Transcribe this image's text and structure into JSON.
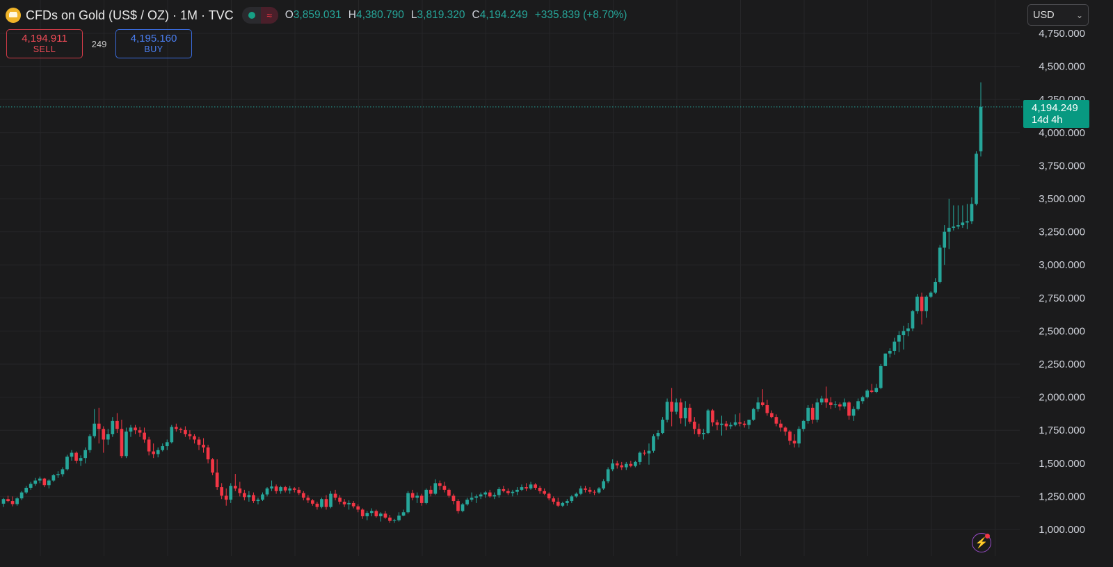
{
  "header": {
    "title": "CFDs on Gold (US$ / OZ) · 1M · TVC",
    "open_key": "O",
    "open": "3,859.031",
    "high_key": "H",
    "high": "4,380.790",
    "low_key": "L",
    "low": "3,819.320",
    "close_key": "C",
    "close": "4,194.249",
    "change": "+335.839 (+8.70%)"
  },
  "trade": {
    "sell_price": "4,194.911",
    "sell_label": "SELL",
    "spread": "249",
    "buy_price": "4,195.160",
    "buy_label": "BUY"
  },
  "currency": "USD",
  "last_price": {
    "price": "4,194.249",
    "countdown": "14d 4h"
  },
  "icons": [
    "gold-logo-icon",
    "status-dot-icon",
    "wave-icon",
    "chevron-down-icon",
    "lightning-icon"
  ],
  "colors": {
    "up": "#26a69a",
    "down": "#f23645",
    "background": "#1b1b1c",
    "grid": "#262628",
    "price_tag": "#089981"
  },
  "chart_data": {
    "type": "candlestick",
    "symbol": "CFDs on Gold (US$ / OZ)",
    "interval": "1M",
    "y_ticks": [
      1000,
      1250,
      1500,
      1750,
      2000,
      2250,
      2500,
      2750,
      3000,
      3250,
      3500,
      3750,
      4000,
      4250,
      4500,
      4750
    ],
    "y_tick_labels": [
      "1,000.000",
      "1,250.000",
      "1,500.000",
      "1,750.000",
      "2,000.000",
      "2,250.000",
      "2,500.000",
      "2,750.000",
      "3,000.000",
      "3,250.000",
      "3,500.000",
      "3,750.000",
      "4,000.000",
      "4,250.000",
      "4,500.000",
      "4,750.000"
    ],
    "ylim": [
      925,
      4800
    ],
    "grid": true,
    "last_price_line": 4194.249,
    "candles": [
      [
        1195,
        1238,
        1170,
        1230
      ],
      [
        1230,
        1255,
        1205,
        1215
      ],
      [
        1215,
        1250,
        1175,
        1192
      ],
      [
        1192,
        1245,
        1180,
        1235
      ],
      [
        1235,
        1290,
        1222,
        1280
      ],
      [
        1280,
        1330,
        1268,
        1315
      ],
      [
        1315,
        1360,
        1300,
        1345
      ],
      [
        1345,
        1390,
        1330,
        1370
      ],
      [
        1370,
        1400,
        1350,
        1385
      ],
      [
        1385,
        1390,
        1320,
        1335
      ],
      [
        1335,
        1380,
        1310,
        1370
      ],
      [
        1370,
        1420,
        1360,
        1410
      ],
      [
        1410,
        1440,
        1390,
        1418
      ],
      [
        1418,
        1470,
        1400,
        1455
      ],
      [
        1455,
        1565,
        1445,
        1550
      ],
      [
        1550,
        1600,
        1520,
        1580
      ],
      [
        1580,
        1590,
        1500,
        1520
      ],
      [
        1520,
        1560,
        1480,
        1540
      ],
      [
        1540,
        1620,
        1500,
        1600
      ],
      [
        1600,
        1720,
        1580,
        1705
      ],
      [
        1705,
        1910,
        1690,
        1800
      ],
      [
        1800,
        1920,
        1650,
        1760
      ],
      [
        1760,
        1780,
        1580,
        1680
      ],
      [
        1680,
        1760,
        1640,
        1720
      ],
      [
        1720,
        1850,
        1700,
        1820
      ],
      [
        1820,
        1880,
        1730,
        1760
      ],
      [
        1760,
        1830,
        1540,
        1555
      ],
      [
        1555,
        1770,
        1540,
        1740
      ],
      [
        1740,
        1790,
        1700,
        1770
      ],
      [
        1770,
        1790,
        1720,
        1750
      ],
      [
        1750,
        1775,
        1700,
        1732
      ],
      [
        1732,
        1770,
        1655,
        1680
      ],
      [
        1680,
        1700,
        1560,
        1590
      ],
      [
        1590,
        1650,
        1540,
        1570
      ],
      [
        1570,
        1620,
        1545,
        1600
      ],
      [
        1600,
        1650,
        1590,
        1630
      ],
      [
        1630,
        1680,
        1600,
        1660
      ],
      [
        1660,
        1790,
        1650,
        1775
      ],
      [
        1775,
        1800,
        1740,
        1760
      ],
      [
        1760,
        1770,
        1730,
        1752
      ],
      [
        1752,
        1780,
        1700,
        1720
      ],
      [
        1720,
        1750,
        1680,
        1705
      ],
      [
        1705,
        1720,
        1650,
        1680
      ],
      [
        1680,
        1700,
        1600,
        1640
      ],
      [
        1640,
        1690,
        1580,
        1620
      ],
      [
        1620,
        1640,
        1500,
        1530
      ],
      [
        1530,
        1540,
        1410,
        1430
      ],
      [
        1430,
        1530,
        1300,
        1320
      ],
      [
        1320,
        1350,
        1230,
        1255
      ],
      [
        1255,
        1310,
        1180,
        1225
      ],
      [
        1225,
        1350,
        1200,
        1330
      ],
      [
        1330,
        1420,
        1290,
        1310
      ],
      [
        1310,
        1360,
        1250,
        1275
      ],
      [
        1275,
        1300,
        1220,
        1245
      ],
      [
        1245,
        1290,
        1210,
        1260
      ],
      [
        1260,
        1280,
        1200,
        1215
      ],
      [
        1215,
        1240,
        1190,
        1225
      ],
      [
        1225,
        1280,
        1215,
        1265
      ],
      [
        1265,
        1320,
        1250,
        1310
      ],
      [
        1310,
        1370,
        1290,
        1325
      ],
      [
        1325,
        1340,
        1270,
        1290
      ],
      [
        1290,
        1330,
        1270,
        1320
      ],
      [
        1320,
        1330,
        1280,
        1295
      ],
      [
        1295,
        1330,
        1270,
        1310
      ],
      [
        1310,
        1320,
        1280,
        1300
      ],
      [
        1300,
        1320,
        1260,
        1275
      ],
      [
        1275,
        1290,
        1220,
        1240
      ],
      [
        1240,
        1260,
        1200,
        1220
      ],
      [
        1220,
        1230,
        1180,
        1195
      ],
      [
        1195,
        1210,
        1150,
        1170
      ],
      [
        1170,
        1240,
        1160,
        1230
      ],
      [
        1230,
        1260,
        1150,
        1170
      ],
      [
        1170,
        1290,
        1160,
        1270
      ],
      [
        1270,
        1300,
        1220,
        1240
      ],
      [
        1240,
        1260,
        1190,
        1210
      ],
      [
        1210,
        1230,
        1170,
        1190
      ],
      [
        1190,
        1220,
        1150,
        1200
      ],
      [
        1200,
        1215,
        1160,
        1175
      ],
      [
        1175,
        1190,
        1130,
        1150
      ],
      [
        1150,
        1160,
        1080,
        1100
      ],
      [
        1100,
        1140,
        1070,
        1125
      ],
      [
        1125,
        1160,
        1100,
        1140
      ],
      [
        1140,
        1150,
        1090,
        1100
      ],
      [
        1100,
        1130,
        1060,
        1120
      ],
      [
        1120,
        1140,
        1080,
        1090
      ],
      [
        1090,
        1110,
        1050,
        1065
      ],
      [
        1065,
        1080,
        1050,
        1070
      ],
      [
        1070,
        1130,
        1060,
        1105
      ],
      [
        1105,
        1150,
        1100,
        1130
      ],
      [
        1130,
        1290,
        1120,
        1275
      ],
      [
        1275,
        1300,
        1220,
        1240
      ],
      [
        1240,
        1280,
        1200,
        1255
      ],
      [
        1255,
        1270,
        1180,
        1200
      ],
      [
        1200,
        1310,
        1190,
        1300
      ],
      [
        1300,
        1330,
        1250,
        1270
      ],
      [
        1270,
        1380,
        1260,
        1350
      ],
      [
        1350,
        1370,
        1300,
        1330
      ],
      [
        1330,
        1360,
        1280,
        1300
      ],
      [
        1300,
        1310,
        1240,
        1255
      ],
      [
        1255,
        1270,
        1190,
        1215
      ],
      [
        1215,
        1230,
        1120,
        1140
      ],
      [
        1140,
        1200,
        1130,
        1190
      ],
      [
        1190,
        1240,
        1180,
        1225
      ],
      [
        1225,
        1280,
        1210,
        1240
      ],
      [
        1240,
        1265,
        1200,
        1250
      ],
      [
        1250,
        1280,
        1230,
        1265
      ],
      [
        1265,
        1290,
        1240,
        1280
      ],
      [
        1280,
        1300,
        1240,
        1250
      ],
      [
        1250,
        1280,
        1230,
        1260
      ],
      [
        1260,
        1320,
        1240,
        1305
      ],
      [
        1305,
        1330,
        1280,
        1290
      ],
      [
        1290,
        1310,
        1260,
        1275
      ],
      [
        1275,
        1300,
        1250,
        1285
      ],
      [
        1285,
        1320,
        1260,
        1300
      ],
      [
        1300,
        1340,
        1290,
        1320
      ],
      [
        1320,
        1350,
        1290,
        1310
      ],
      [
        1310,
        1360,
        1300,
        1340
      ],
      [
        1340,
        1350,
        1300,
        1315
      ],
      [
        1315,
        1330,
        1270,
        1290
      ],
      [
        1290,
        1310,
        1260,
        1270
      ],
      [
        1270,
        1280,
        1220,
        1235
      ],
      [
        1235,
        1250,
        1190,
        1210
      ],
      [
        1210,
        1240,
        1170,
        1180
      ],
      [
        1180,
        1210,
        1170,
        1200
      ],
      [
        1200,
        1230,
        1180,
        1215
      ],
      [
        1215,
        1260,
        1200,
        1250
      ],
      [
        1250,
        1280,
        1240,
        1270
      ],
      [
        1270,
        1330,
        1260,
        1310
      ],
      [
        1310,
        1330,
        1280,
        1300
      ],
      [
        1300,
        1320,
        1270,
        1285
      ],
      [
        1285,
        1300,
        1260,
        1280
      ],
      [
        1280,
        1320,
        1270,
        1310
      ],
      [
        1310,
        1380,
        1300,
        1365
      ],
      [
        1365,
        1470,
        1350,
        1455
      ],
      [
        1455,
        1530,
        1440,
        1500
      ],
      [
        1500,
        1520,
        1460,
        1485
      ],
      [
        1485,
        1510,
        1450,
        1470
      ],
      [
        1470,
        1510,
        1450,
        1495
      ],
      [
        1495,
        1520,
        1470,
        1480
      ],
      [
        1480,
        1520,
        1470,
        1510
      ],
      [
        1510,
        1590,
        1490,
        1580
      ],
      [
        1580,
        1600,
        1560,
        1575
      ],
      [
        1575,
        1650,
        1490,
        1595
      ],
      [
        1595,
        1720,
        1580,
        1705
      ],
      [
        1705,
        1750,
        1680,
        1730
      ],
      [
        1730,
        1850,
        1720,
        1830
      ],
      [
        1830,
        1990,
        1810,
        1965
      ],
      [
        1965,
        2070,
        1780,
        1890
      ],
      [
        1890,
        1990,
        1870,
        1960
      ],
      [
        1960,
        1990,
        1800,
        1840
      ],
      [
        1840,
        1970,
        1780,
        1920
      ],
      [
        1920,
        1950,
        1800,
        1815
      ],
      [
        1815,
        1850,
        1720,
        1760
      ],
      [
        1760,
        1800,
        1700,
        1720
      ],
      [
        1720,
        1760,
        1680,
        1730
      ],
      [
        1730,
        1910,
        1720,
        1900
      ],
      [
        1900,
        1910,
        1780,
        1810
      ],
      [
        1810,
        1830,
        1750,
        1790
      ],
      [
        1790,
        1860,
        1710,
        1800
      ],
      [
        1800,
        1820,
        1750,
        1780
      ],
      [
        1780,
        1810,
        1760,
        1790
      ],
      [
        1790,
        1870,
        1780,
        1810
      ],
      [
        1810,
        1880,
        1780,
        1800
      ],
      [
        1800,
        1820,
        1770,
        1790
      ],
      [
        1790,
        1830,
        1760,
        1830
      ],
      [
        1830,
        1920,
        1820,
        1910
      ],
      [
        1910,
        2000,
        1890,
        1960
      ],
      [
        1960,
        2060,
        1930,
        1940
      ],
      [
        1940,
        1980,
        1860,
        1880
      ],
      [
        1880,
        1900,
        1840,
        1850
      ],
      [
        1850,
        1870,
        1780,
        1800
      ],
      [
        1800,
        1830,
        1740,
        1770
      ],
      [
        1770,
        1780,
        1710,
        1740
      ],
      [
        1740,
        1750,
        1640,
        1670
      ],
      [
        1670,
        1720,
        1620,
        1650
      ],
      [
        1650,
        1780,
        1620,
        1760
      ],
      [
        1760,
        1830,
        1740,
        1820
      ],
      [
        1820,
        1940,
        1800,
        1920
      ],
      [
        1920,
        1950,
        1800,
        1830
      ],
      [
        1830,
        1990,
        1810,
        1960
      ],
      [
        1960,
        2010,
        1940,
        1990
      ],
      [
        1990,
        2080,
        1920,
        1960
      ],
      [
        1960,
        2000,
        1910,
        1940
      ],
      [
        1940,
        1970,
        1920,
        1945
      ],
      [
        1945,
        1960,
        1900,
        1930
      ],
      [
        1930,
        1990,
        1910,
        1960
      ],
      [
        1960,
        1970,
        1830,
        1860
      ],
      [
        1860,
        1930,
        1820,
        1910
      ],
      [
        1910,
        1990,
        1900,
        1970
      ],
      [
        1970,
        2010,
        1950,
        2000
      ],
      [
        2000,
        2060,
        1990,
        2050
      ],
      [
        2050,
        2100,
        2030,
        2040
      ],
      [
        2040,
        2100,
        2030,
        2070
      ],
      [
        2070,
        2250,
        2060,
        2235
      ],
      [
        2235,
        2330,
        2240,
        2330
      ],
      [
        2330,
        2370,
        2300,
        2350
      ],
      [
        2350,
        2450,
        2320,
        2420
      ],
      [
        2420,
        2500,
        2340,
        2470
      ],
      [
        2470,
        2540,
        2360,
        2500
      ],
      [
        2500,
        2560,
        2460,
        2520
      ],
      [
        2520,
        2660,
        2500,
        2650
      ],
      [
        2650,
        2780,
        2630,
        2760
      ],
      [
        2760,
        2790,
        2550,
        2650
      ],
      [
        2650,
        2770,
        2600,
        2760
      ],
      [
        2760,
        2800,
        2750,
        2790
      ],
      [
        2790,
        2900,
        2780,
        2870
      ],
      [
        2870,
        3150,
        2860,
        3130
      ],
      [
        3130,
        3300,
        3000,
        3250
      ],
      [
        3250,
        3500,
        3120,
        3280
      ],
      [
        3280,
        3450,
        3260,
        3290
      ],
      [
        3290,
        3450,
        3270,
        3300
      ],
      [
        3300,
        3450,
        3280,
        3320
      ],
      [
        3320,
        3460,
        3270,
        3330
      ],
      [
        3330,
        3510,
        3310,
        3460
      ],
      [
        3460,
        3860,
        3450,
        3840
      ],
      [
        3859,
        4380,
        3819,
        4194
      ]
    ]
  }
}
